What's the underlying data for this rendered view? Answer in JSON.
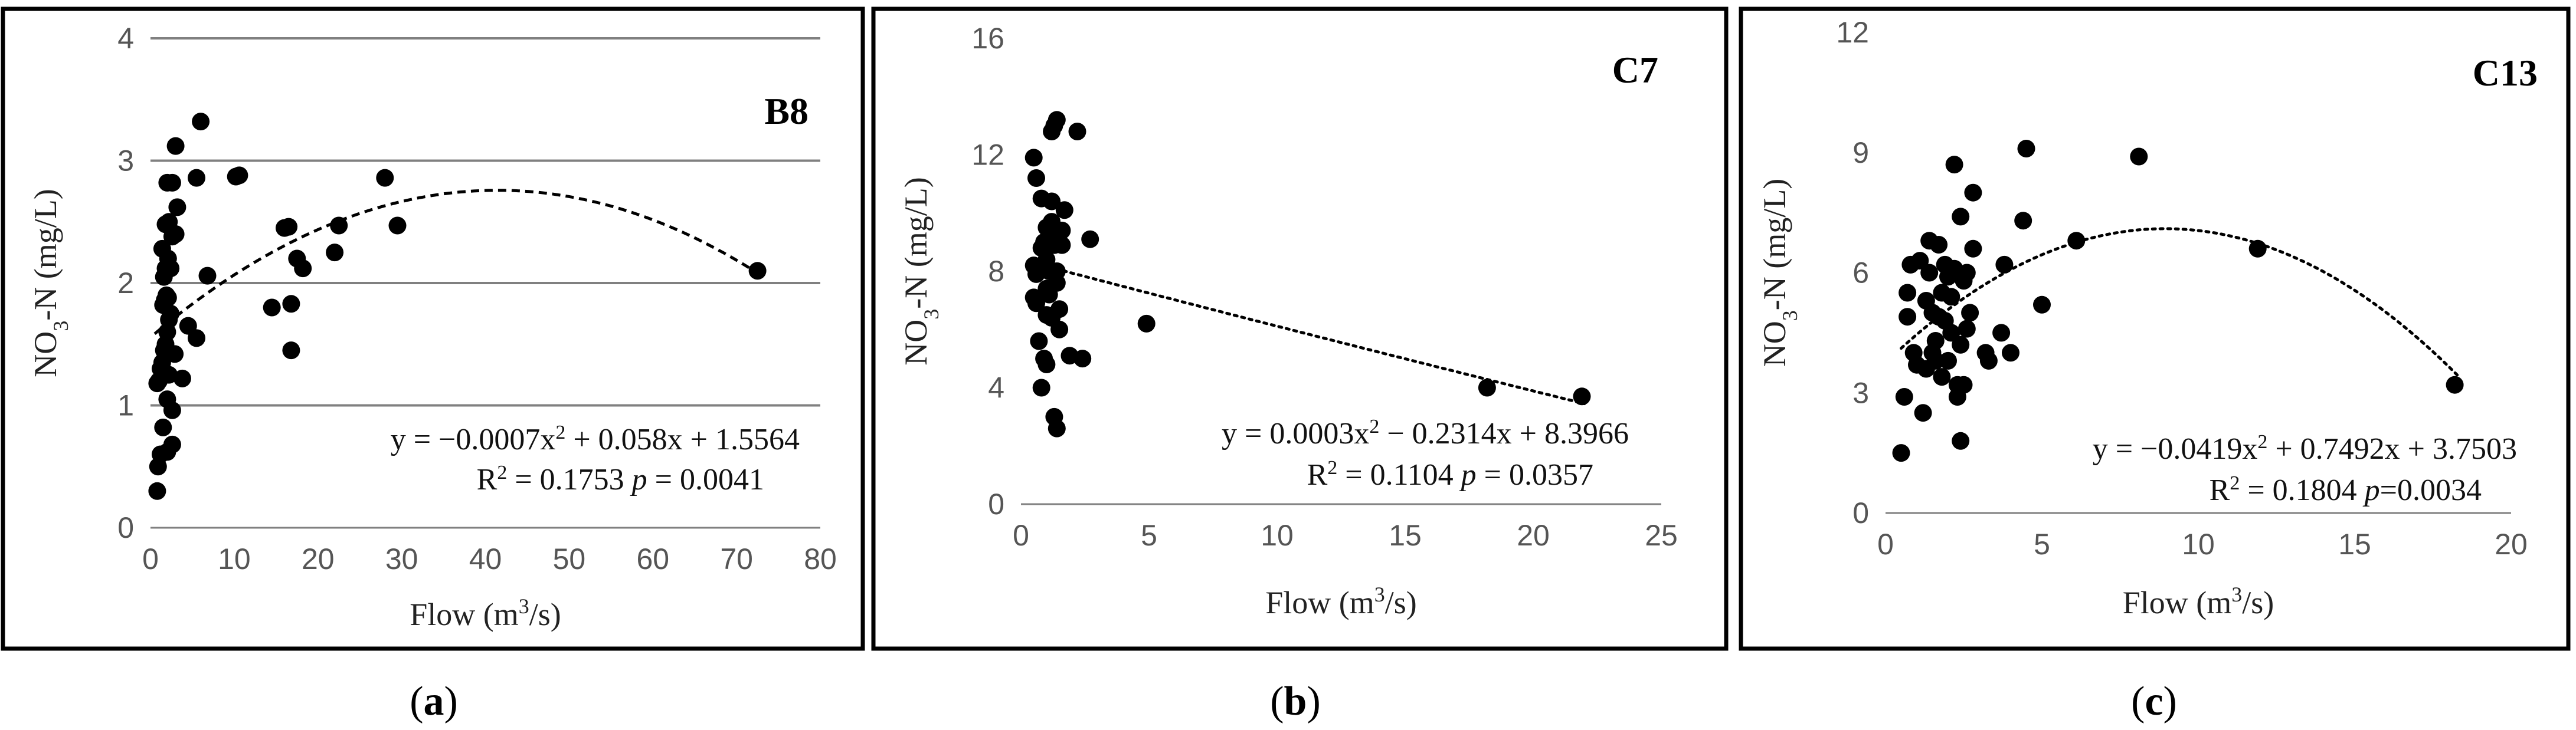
{
  "colors": {
    "points": "#000000",
    "grid": "#808080",
    "ticks": "#555555",
    "frame": "#000000"
  },
  "chart_data": [
    {
      "type": "scatter",
      "panel_label": "B8",
      "caption": {
        "open": "(",
        "letter": "a",
        "close": ")"
      },
      "xlabel_main": "Flow  (m",
      "xlabel_sup": "3",
      "xlabel_end": "/s)",
      "ylabel_pre": "NO",
      "ylabel_sub": "3",
      "ylabel_post": "-N (mg/L)",
      "xlim": [
        0,
        80
      ],
      "ylim": [
        0,
        4
      ],
      "xticks": [
        0,
        10,
        20,
        30,
        40,
        50,
        60,
        70,
        80
      ],
      "yticks": [
        0,
        1,
        2,
        3,
        4
      ],
      "grid": "horizontal",
      "trendline": {
        "kind": "polynomial",
        "style": "dashed",
        "coef": [
          -0.0007,
          0.058,
          1.5564
        ],
        "x_range": [
          0.5,
          72
        ]
      },
      "equation": "y = −0.0007x",
      "equation_sup": "2",
      "equation_tail": " + 0.058x + 1.5564",
      "r2_label": "R",
      "r2_sup": "2",
      "r2_value": " = 0.1753",
      "p_label": "p",
      "p_value": " =  0.0041",
      "points": [
        [
          0.8,
          0.3
        ],
        [
          0.9,
          0.5
        ],
        [
          1.2,
          0.6
        ],
        [
          1.5,
          0.82
        ],
        [
          2.0,
          0.62
        ],
        [
          2.6,
          0.68
        ],
        [
          0.8,
          1.18
        ],
        [
          1.0,
          1.2
        ],
        [
          1.2,
          1.3
        ],
        [
          1.4,
          1.35
        ],
        [
          1.6,
          1.45
        ],
        [
          1.8,
          1.5
        ],
        [
          2.0,
          1.6
        ],
        [
          2.2,
          1.7
        ],
        [
          2.4,
          1.75
        ],
        [
          1.5,
          1.82
        ],
        [
          1.7,
          1.86
        ],
        [
          1.9,
          1.9
        ],
        [
          2.1,
          1.88
        ],
        [
          1.6,
          2.05
        ],
        [
          1.8,
          2.12
        ],
        [
          2.1,
          2.2
        ],
        [
          1.4,
          2.28
        ],
        [
          2.4,
          2.12
        ],
        [
          2.6,
          2.38
        ],
        [
          1.8,
          2.48
        ],
        [
          2.2,
          2.5
        ],
        [
          3.0,
          2.4
        ],
        [
          3.2,
          2.62
        ],
        [
          2.0,
          2.82
        ],
        [
          2.6,
          2.82
        ],
        [
          3.0,
          3.12
        ],
        [
          2.0,
          1.05
        ],
        [
          2.6,
          0.96
        ],
        [
          3.8,
          1.22
        ],
        [
          2.2,
          1.25
        ],
        [
          2.9,
          1.42
        ],
        [
          4.5,
          1.65
        ],
        [
          5.5,
          1.55
        ],
        [
          5.5,
          2.86
        ],
        [
          6.0,
          3.32
        ],
        [
          6.8,
          2.06
        ],
        [
          10.2,
          2.87
        ],
        [
          10.6,
          2.88
        ],
        [
          14.5,
          1.8
        ],
        [
          16.0,
          2.45
        ],
        [
          16.8,
          1.45
        ],
        [
          16.5,
          2.46
        ],
        [
          16.8,
          1.83
        ],
        [
          17.5,
          2.2
        ],
        [
          18.2,
          2.12
        ],
        [
          22.0,
          2.25
        ],
        [
          22.5,
          2.47
        ],
        [
          28.0,
          2.86
        ],
        [
          29.5,
          2.47
        ],
        [
          72.5,
          2.1
        ]
      ]
    },
    {
      "type": "scatter",
      "panel_label": "C7",
      "caption": {
        "open": "(",
        "letter": "b",
        "close": ")"
      },
      "xlabel_main": "Flow (m",
      "xlabel_sup": "3",
      "xlabel_end": "/s)",
      "ylabel_pre": "NO",
      "ylabel_sub": "3",
      "ylabel_post": "-N (mg/L)",
      "xlim": [
        0,
        25
      ],
      "ylim": [
        0,
        16
      ],
      "xticks": [
        0,
        5,
        10,
        15,
        20,
        25
      ],
      "yticks": [
        0,
        4,
        8,
        12,
        16
      ],
      "grid": "none",
      "trendline": {
        "kind": "polynomial",
        "style": "dotted",
        "coef": [
          0.0003,
          -0.2314,
          8.3966
        ],
        "x_range": [
          0.5,
          22
        ]
      },
      "equation": "y = 0.0003x",
      "equation_sup": "2",
      "equation_tail": " − 0.2314x + 8.3966",
      "r2_label": "R",
      "r2_sup": "2",
      "r2_value": " = 0.1104",
      "p_label": "p",
      "p_value": " = 0.0357",
      "points": [
        [
          0.5,
          11.9
        ],
        [
          0.6,
          11.2
        ],
        [
          0.5,
          8.2
        ],
        [
          0.6,
          7.9
        ],
        [
          0.5,
          7.1
        ],
        [
          0.6,
          6.9
        ],
        [
          0.7,
          5.6
        ],
        [
          0.8,
          4.0
        ],
        [
          0.8,
          8.8
        ],
        [
          0.9,
          9.0
        ],
        [
          0.8,
          10.5
        ],
        [
          1.0,
          9.5
        ],
        [
          1.0,
          8.4
        ],
        [
          1.0,
          7.4
        ],
        [
          1.0,
          6.5
        ],
        [
          0.9,
          5.0
        ],
        [
          1.0,
          4.8
        ],
        [
          1.1,
          8.0
        ],
        [
          1.2,
          10.4
        ],
        [
          1.2,
          12.8
        ],
        [
          1.3,
          13.0
        ],
        [
          1.4,
          13.2
        ],
        [
          1.2,
          9.7
        ],
        [
          1.3,
          9.2
        ],
        [
          1.3,
          8.9
        ],
        [
          1.4,
          8.0
        ],
        [
          1.4,
          7.6
        ],
        [
          1.1,
          7.2
        ],
        [
          1.2,
          6.4
        ],
        [
          1.5,
          6.0
        ],
        [
          1.3,
          3.0
        ],
        [
          1.4,
          2.6
        ],
        [
          1.6,
          9.4
        ],
        [
          1.7,
          10.1
        ],
        [
          1.6,
          8.9
        ],
        [
          1.5,
          6.7
        ],
        [
          1.9,
          5.1
        ],
        [
          2.2,
          12.8
        ],
        [
          2.4,
          5.0
        ],
        [
          2.7,
          9.1
        ],
        [
          4.9,
          6.2
        ],
        [
          18.2,
          4.0
        ],
        [
          21.9,
          3.7
        ]
      ]
    },
    {
      "type": "scatter",
      "panel_label": "C13",
      "caption": {
        "open": "(",
        "letter": "c",
        "close": ")"
      },
      "xlabel_main": "Flow (m",
      "xlabel_sup": "3",
      "xlabel_end": "/s)",
      "ylabel_pre": "NO",
      "ylabel_sub": "3",
      "ylabel_post": "-N (mg/L)",
      "xlim": [
        0,
        20
      ],
      "ylim": [
        0,
        12
      ],
      "xticks": [
        0,
        5,
        10,
        15,
        20
      ],
      "yticks": [
        0,
        3,
        6,
        9,
        12
      ],
      "grid": "none",
      "trendline": {
        "kind": "polynomial",
        "style": "dotted",
        "coef": [
          -0.0419,
          0.7492,
          3.7503
        ],
        "x_range": [
          0.5,
          18.3
        ]
      },
      "equation": "y = −0.0419x",
      "equation_sup": "2",
      "equation_tail": " + 0.7492x + 3.7503",
      "r2_label": "R",
      "r2_sup": "2",
      "r2_value": " = 0.1804  ",
      "p_label": "p",
      "p_value": "=0.0034",
      "points": [
        [
          0.5,
          1.5
        ],
        [
          0.6,
          2.9
        ],
        [
          0.7,
          4.9
        ],
        [
          0.7,
          5.5
        ],
        [
          0.8,
          6.2
        ],
        [
          0.9,
          4.0
        ],
        [
          1.0,
          3.7
        ],
        [
          1.1,
          6.3
        ],
        [
          1.2,
          2.5
        ],
        [
          1.3,
          3.6
        ],
        [
          1.3,
          5.3
        ],
        [
          1.4,
          6.8
        ],
        [
          1.4,
          6.0
        ],
        [
          1.5,
          4.0
        ],
        [
          1.5,
          5.0
        ],
        [
          1.6,
          4.3
        ],
        [
          1.6,
          3.8
        ],
        [
          1.7,
          6.7
        ],
        [
          1.7,
          4.9
        ],
        [
          1.8,
          5.5
        ],
        [
          1.8,
          3.4
        ],
        [
          1.9,
          4.8
        ],
        [
          1.9,
          6.2
        ],
        [
          2.0,
          5.9
        ],
        [
          2.0,
          3.8
        ],
        [
          2.1,
          5.4
        ],
        [
          2.1,
          4.5
        ],
        [
          2.2,
          8.7
        ],
        [
          2.2,
          6.1
        ],
        [
          2.3,
          3.2
        ],
        [
          2.3,
          2.9
        ],
        [
          2.4,
          7.4
        ],
        [
          2.4,
          4.2
        ],
        [
          2.4,
          1.8
        ],
        [
          2.5,
          5.8
        ],
        [
          2.5,
          3.2
        ],
        [
          2.6,
          4.6
        ],
        [
          2.6,
          6.0
        ],
        [
          2.7,
          5.0
        ],
        [
          2.8,
          8.0
        ],
        [
          2.8,
          6.6
        ],
        [
          3.2,
          4.0
        ],
        [
          3.3,
          3.8
        ],
        [
          3.7,
          4.5
        ],
        [
          3.8,
          6.2
        ],
        [
          4.0,
          4.0
        ],
        [
          4.4,
          7.3
        ],
        [
          4.5,
          9.1
        ],
        [
          5.0,
          5.2
        ],
        [
          6.1,
          6.8
        ],
        [
          8.1,
          8.9
        ],
        [
          11.9,
          6.6
        ],
        [
          18.2,
          3.2
        ]
      ]
    }
  ]
}
